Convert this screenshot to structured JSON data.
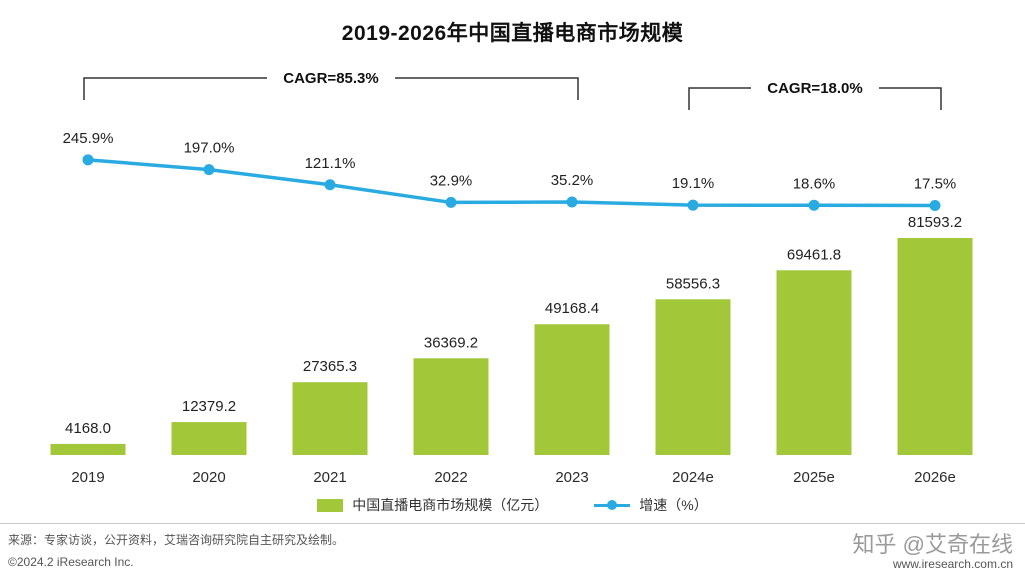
{
  "title": "2019-2026年中国直播电商市场规模",
  "chart_data": {
    "type": "bar",
    "categories": [
      "2019",
      "2020",
      "2021",
      "2022",
      "2023",
      "2024e",
      "2025e",
      "2026e"
    ],
    "series": [
      {
        "name": "中国直播电商市场规模（亿元）",
        "type": "bar",
        "color": "#a2c83a",
        "values": [
          4168.0,
          12379.2,
          27365.3,
          36369.2,
          49168.4,
          58556.3,
          69461.8,
          81593.2
        ]
      },
      {
        "name": "增速（%）",
        "type": "line",
        "color": "#29abe2",
        "values": [
          245.9,
          197.0,
          121.1,
          32.9,
          35.2,
          19.1,
          18.6,
          17.5
        ]
      }
    ],
    "annotations": [
      {
        "label": "CAGR=85.3%",
        "from": 0,
        "to": 4
      },
      {
        "label": "CAGR=18.0%",
        "from": 5,
        "to": 7
      }
    ],
    "value_suffix_line": "%",
    "grid": "off",
    "legend_position": "bottom",
    "bar_axis_range": [
      0,
      81593.2
    ]
  },
  "footer": {
    "source_line": "来源：专家访谈，公开资料，艾瑞咨询研究院自主研究及绘制。",
    "copyright": "©2024.2 iResearch Inc.",
    "watermark": "知乎 @艾奇在线",
    "website": "www.iresearch.com.cn"
  }
}
